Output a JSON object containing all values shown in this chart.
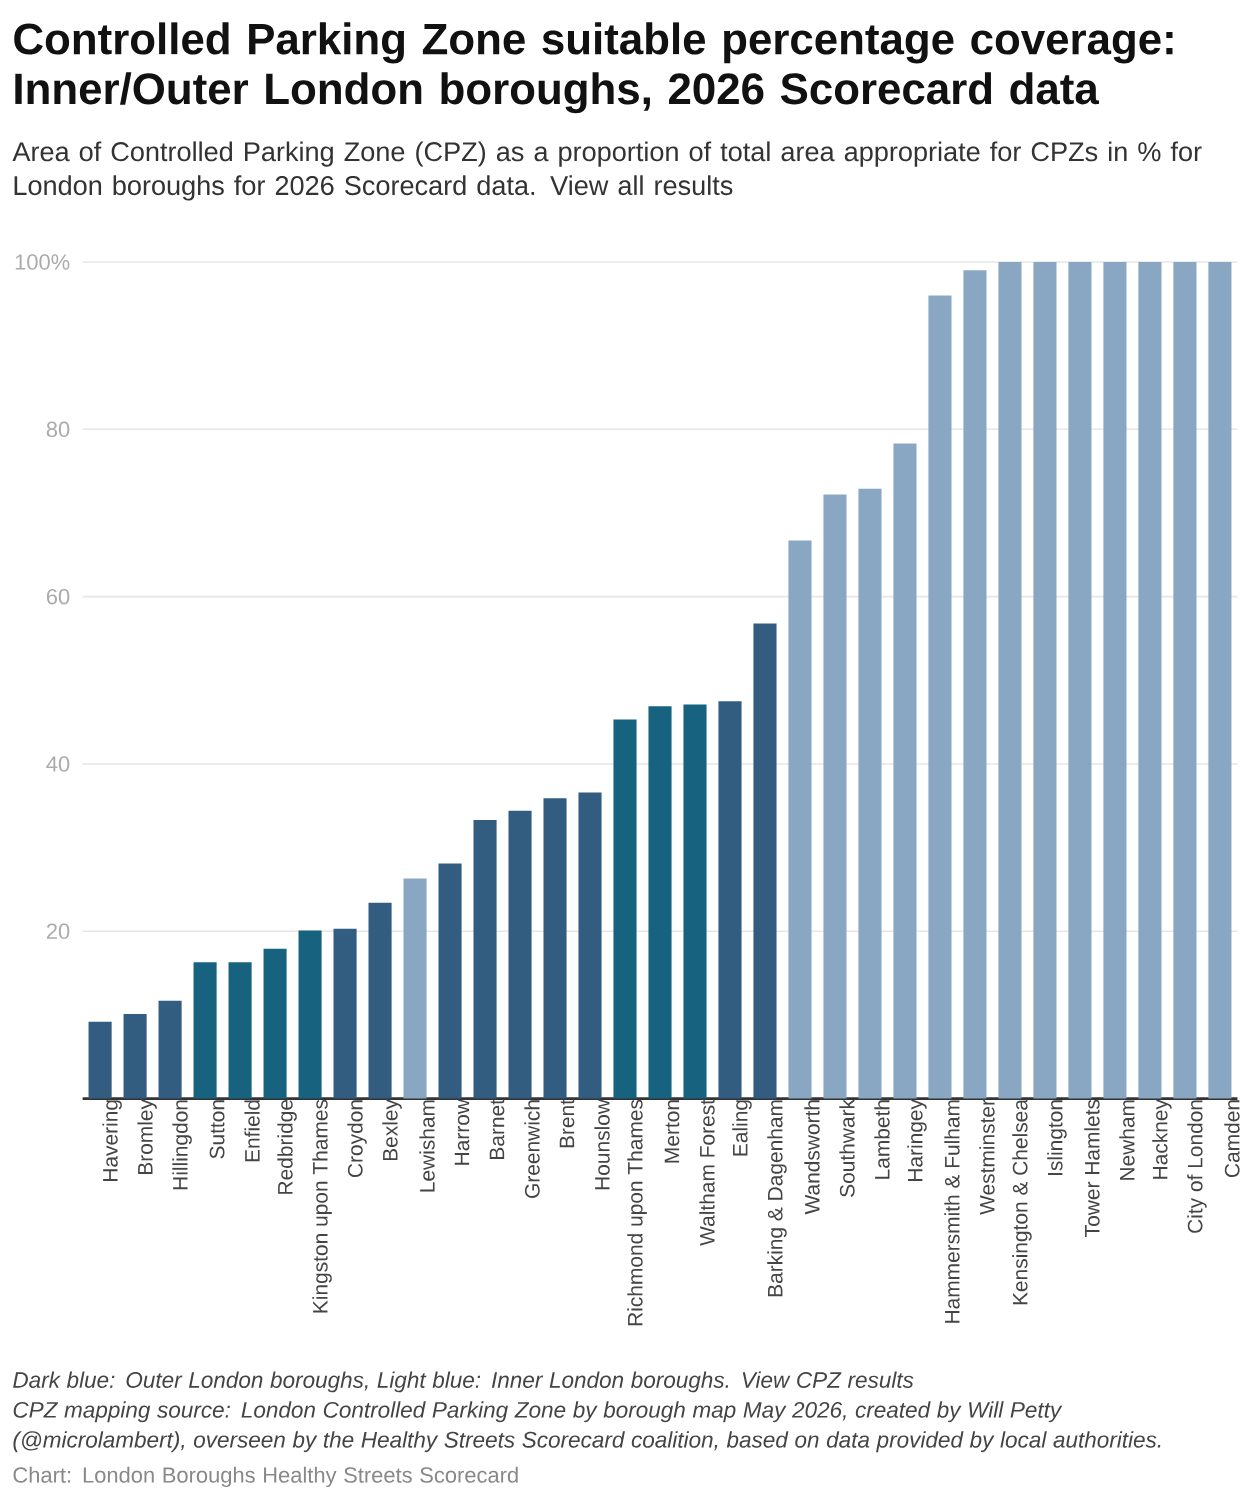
{
  "chart_data": {
    "type": "bar",
    "title": "Controlled Parking Zone suitable percentage coverage: Inner/Outer London boroughs, 2026 Scorecard data",
    "subtitle": "Area of Controlled Parking Zone (CPZ) as a proportion of total area appropriate for CPZs in % for London boroughs for 2026 Scorecard data. View all results",
    "categories": [
      "Havering",
      "Bromley",
      "Hillingdon",
      "Sutton",
      "Enfield",
      "Redbridge",
      "Kingston upon Thames",
      "Croydon",
      "Bexley",
      "Lewisham",
      "Harrow",
      "Barnet",
      "Greenwich",
      "Brent",
      "Hounslow",
      "Richmond upon Thames",
      "Merton",
      "Waltham Forest",
      "Ealing",
      "Barking & Dagenham",
      "Wandsworth",
      "Southwark",
      "Lambeth",
      "Haringey",
      "Hammersmith & Fulham",
      "Westminster",
      "Kensington & Chelsea",
      "Islington",
      "Tower Hamlets",
      "Newham",
      "Hackney",
      "City of London",
      "Camden"
    ],
    "values": [
      9.2,
      10.1,
      11.7,
      16.3,
      16.3,
      17.9,
      20.1,
      20.3,
      23.4,
      26.3,
      28.1,
      33.3,
      34.4,
      35.9,
      36.6,
      45.3,
      46.9,
      47.1,
      47.5,
      56.8,
      66.7,
      72.2,
      72.9,
      78.3,
      96.0,
      99.0,
      100,
      100,
      100,
      100,
      100,
      100,
      100
    ],
    "colors": [
      "#335c81",
      "#335c81",
      "#335c81",
      "#17637f",
      "#17637f",
      "#17637f",
      "#17637f",
      "#335c81",
      "#335c81",
      "#89a7c2",
      "#335c81",
      "#335c81",
      "#335c81",
      "#335c81",
      "#335c81",
      "#17637f",
      "#17637f",
      "#17637f",
      "#335c81",
      "#335c81",
      "#89a7c2",
      "#89a7c2",
      "#89a7c2",
      "#89a7c2",
      "#89a7c2",
      "#89a7c2",
      "#89a7c2",
      "#89a7c2",
      "#89a7c2",
      "#89a7c2",
      "#89a7c2",
      "#89a7c2",
      "#89a7c2"
    ],
    "ylim": [
      0,
      100
    ],
    "yticks": [
      20,
      40,
      60,
      80,
      {
        "value": 100,
        "label": "100%"
      }
    ],
    "grid": "y",
    "annotations": [
      "Dark blue: Outer London boroughs, Light blue: Inner London boroughs. View CPZ results",
      "CPZ mapping source: London Controlled Parking Zone by borough map May 2026, created by Will Petty (@microlambert), overseen by the Healthy Streets Scorecard coalition, based on data provided by local authorities.",
      "Chart: London Boroughs Healthy Streets Scorecard"
    ]
  }
}
